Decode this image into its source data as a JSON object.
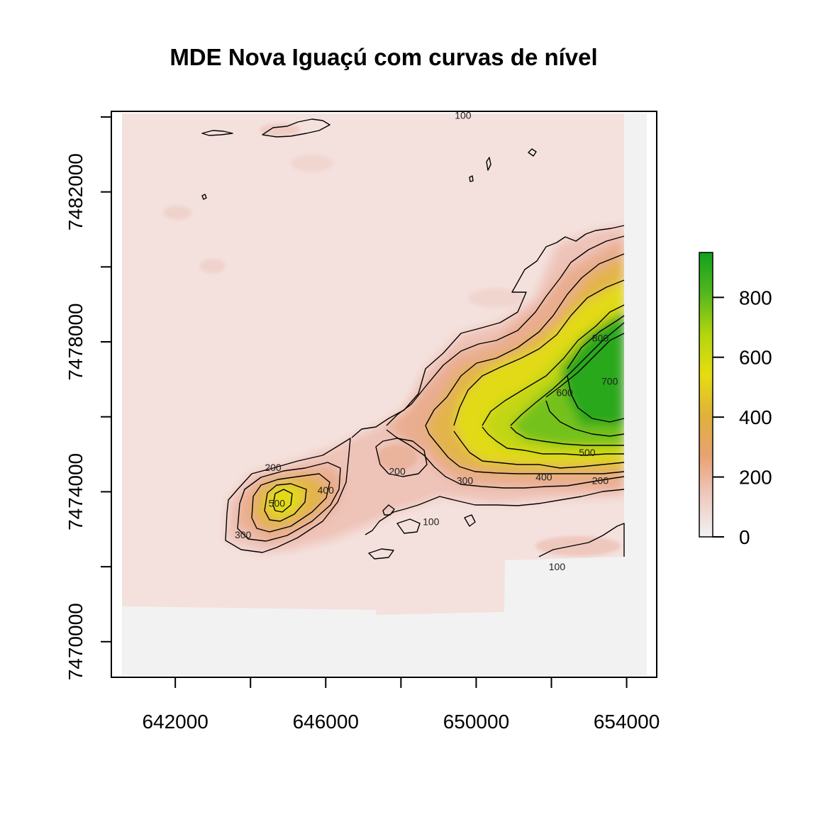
{
  "chart_data": {
    "type": "heatmap",
    "title": "MDE Nova Iguaçú com curvas de nível",
    "x_ticks": [
      {
        "value": 642000,
        "label": "642000"
      },
      {
        "value": 644000,
        "label": ""
      },
      {
        "value": 646000,
        "label": "646000"
      },
      {
        "value": 648000,
        "label": ""
      },
      {
        "value": 650000,
        "label": "650000"
      },
      {
        "value": 652000,
        "label": ""
      },
      {
        "value": 654000,
        "label": "654000"
      }
    ],
    "y_ticks": [
      {
        "value": 7470000,
        "label": "7470000"
      },
      {
        "value": 7472000,
        "label": ""
      },
      {
        "value": 7474000,
        "label": "7474000"
      },
      {
        "value": 7476000,
        "label": ""
      },
      {
        "value": 7478000,
        "label": "7478000"
      },
      {
        "value": 7480000,
        "label": ""
      },
      {
        "value": 7482000,
        "label": "7482000"
      },
      {
        "value": 7484000,
        "label": ""
      }
    ],
    "xlim": [
      640300,
      654800
    ],
    "ylim": [
      7469050,
      7484150
    ],
    "colorbar": {
      "range": [
        0,
        950
      ],
      "ticks": [
        0,
        200,
        400,
        600,
        800
      ],
      "colors": [
        "#f2f2f2",
        "#efc9c0",
        "#e8a272",
        "#dfb23a",
        "#e5dd10",
        "#b2d50e",
        "#52b71d",
        "#11a21f"
      ]
    },
    "contour_levels": [
      100,
      200,
      300,
      400,
      500,
      600,
      700,
      800
    ],
    "contour_labels": [
      {
        "text": "100",
        "x": 649650,
        "y": 7484050
      },
      {
        "text": "200",
        "x": 644600,
        "y": 7474650
      },
      {
        "text": "400",
        "x": 646000,
        "y": 7474050
      },
      {
        "text": "500",
        "x": 644700,
        "y": 7473700
      },
      {
        "text": "300",
        "x": 643800,
        "y": 7472850
      },
      {
        "text": "200",
        "x": 647900,
        "y": 7474550
      },
      {
        "text": "100",
        "x": 648800,
        "y": 7473200
      },
      {
        "text": "300",
        "x": 649700,
        "y": 7474300
      },
      {
        "text": "400",
        "x": 651800,
        "y": 7474400
      },
      {
        "text": "200",
        "x": 653300,
        "y": 7474300
      },
      {
        "text": "500",
        "x": 652950,
        "y": 7475050
      },
      {
        "text": "600",
        "x": 652350,
        "y": 7476650
      },
      {
        "text": "700",
        "x": 653550,
        "y": 7476950
      },
      {
        "text": "800",
        "x": 653300,
        "y": 7478100
      },
      {
        "text": "100",
        "x": 652150,
        "y": 7472000
      }
    ],
    "grid": false,
    "legend": "right"
  }
}
